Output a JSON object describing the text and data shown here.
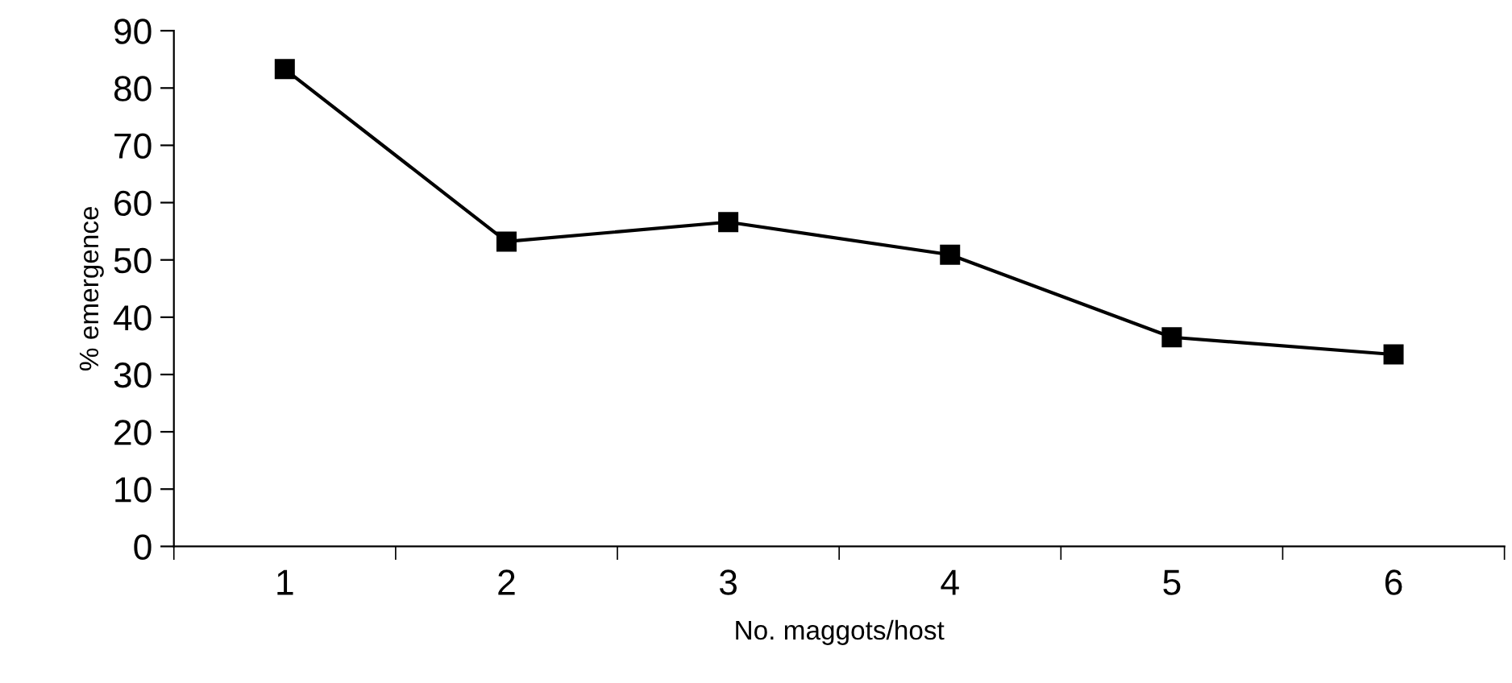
{
  "chart_data": {
    "type": "line",
    "xlabel": "No. maggots/host",
    "ylabel": "% emergence",
    "categories": [
      "1",
      "2",
      "3",
      "4",
      "5",
      "6"
    ],
    "series": [
      {
        "color": "#000000",
        "values": [
          83.3,
          53.2,
          56.6,
          50.9,
          36.5,
          33.5
        ]
      }
    ],
    "ylim": [
      0,
      90
    ],
    "yticks": [
      0,
      10,
      20,
      30,
      40,
      50,
      60,
      70,
      80,
      90
    ],
    "grid": false,
    "legend": false,
    "marker": "square",
    "line_style": "solid"
  }
}
